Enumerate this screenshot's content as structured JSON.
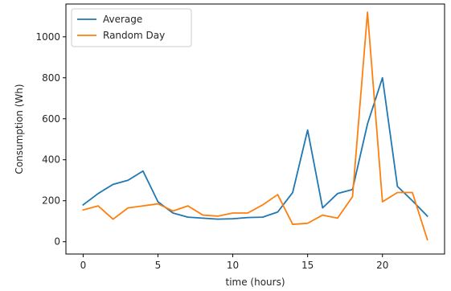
{
  "chart_data": {
    "type": "line",
    "title": "",
    "xlabel": "time (hours)",
    "ylabel": "Consumption (Wh)",
    "xlim": [
      -1.15,
      24.15
    ],
    "ylim": [
      -60,
      1160
    ],
    "xticks": [
      0,
      5,
      10,
      15,
      20
    ],
    "yticks": [
      0,
      200,
      400,
      600,
      800,
      1000
    ],
    "grid": false,
    "legend_position": "top-left",
    "x": [
      0,
      1,
      2,
      3,
      4,
      5,
      6,
      7,
      8,
      9,
      10,
      11,
      12,
      13,
      14,
      15,
      16,
      17,
      18,
      19,
      20,
      21,
      22,
      23
    ],
    "series": [
      {
        "name": "Average",
        "color": "#1f77b4",
        "values": [
          180,
          235,
          280,
          300,
          345,
          195,
          140,
          120,
          115,
          110,
          112,
          118,
          120,
          145,
          240,
          545,
          165,
          235,
          255,
          575,
          800,
          270,
          200,
          125
        ]
      },
      {
        "name": "Random Day",
        "color": "#ff7f0e",
        "values": [
          155,
          175,
          110,
          165,
          175,
          185,
          150,
          175,
          130,
          125,
          140,
          140,
          180,
          230,
          85,
          90,
          130,
          115,
          220,
          1120,
          195,
          240,
          240,
          10
        ]
      }
    ]
  }
}
